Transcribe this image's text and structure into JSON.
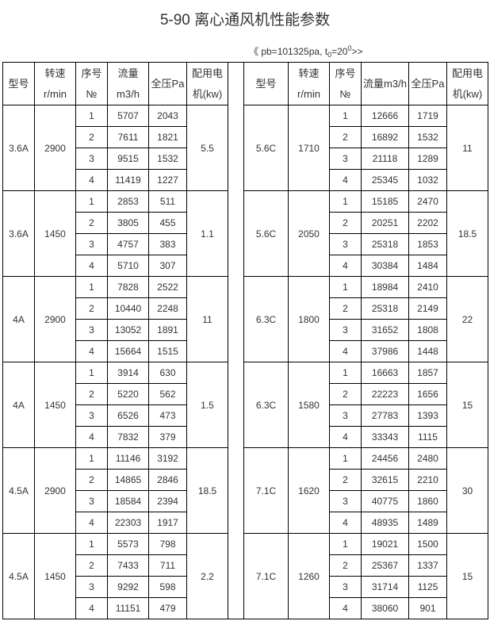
{
  "title": "5-90 离心通风机性能参数",
  "conditions": {
    "prefix": "《 pb=101325pa, t",
    "sub": "0",
    "mid": "=20",
    "sup": "0",
    "suffix": ">>"
  },
  "headers": {
    "left": [
      "型号",
      "转速r/min",
      "序号№",
      "流量m3/h",
      "全压Pa",
      "配用电机(kw)"
    ],
    "right": [
      "型号",
      "转速r/min",
      "序号№",
      "流量m3/h",
      "全压Pa",
      "配用电机(kw)"
    ]
  },
  "left_groups": [
    {
      "model": "3.6A",
      "speed": "2900",
      "motor": "5.5",
      "rows": [
        [
          "1",
          "5707",
          "2043"
        ],
        [
          "2",
          "7611",
          "1821"
        ],
        [
          "3",
          "9515",
          "1532"
        ],
        [
          "4",
          "11419",
          "1227"
        ]
      ]
    },
    {
      "model": "3.6A",
      "speed": "1450",
      "motor": "1.1",
      "rows": [
        [
          "1",
          "2853",
          "511"
        ],
        [
          "2",
          "3805",
          "455"
        ],
        [
          "3",
          "4757",
          "383"
        ],
        [
          "4",
          "5710",
          "307"
        ]
      ]
    },
    {
      "model": "4A",
      "speed": "2900",
      "motor": "11",
      "rows": [
        [
          "1",
          "7828",
          "2522"
        ],
        [
          "2",
          "10440",
          "2248"
        ],
        [
          "3",
          "13052",
          "1891"
        ],
        [
          "4",
          "15664",
          "1515"
        ]
      ]
    },
    {
      "model": "4A",
      "speed": "1450",
      "motor": "1.5",
      "rows": [
        [
          "1",
          "3914",
          "630"
        ],
        [
          "2",
          "5220",
          "562"
        ],
        [
          "3",
          "6526",
          "473"
        ],
        [
          "4",
          "7832",
          "379"
        ]
      ]
    },
    {
      "model": "4.5A",
      "speed": "2900",
      "motor": "18.5",
      "rows": [
        [
          "1",
          "11146",
          "3192"
        ],
        [
          "2",
          "14865",
          "2846"
        ],
        [
          "3",
          "18584",
          "2394"
        ],
        [
          "4",
          "22303",
          "1917"
        ]
      ]
    },
    {
      "model": "4.5A",
      "speed": "1450",
      "motor": "2.2",
      "rows": [
        [
          "1",
          "5573",
          "798"
        ],
        [
          "2",
          "7433",
          "711"
        ],
        [
          "3",
          "9292",
          "598"
        ],
        [
          "4",
          "11151",
          "479"
        ]
      ]
    }
  ],
  "right_groups": [
    {
      "model": "5.6C",
      "speed": "1710",
      "motor": "11",
      "rows": [
        [
          "1",
          "12666",
          "1719"
        ],
        [
          "2",
          "16892",
          "1532"
        ],
        [
          "3",
          "21118",
          "1289"
        ],
        [
          "4",
          "25345",
          "1032"
        ]
      ]
    },
    {
      "model": "5.6C",
      "speed": "2050",
      "motor": "18.5",
      "rows": [
        [
          "1",
          "15185",
          "2470"
        ],
        [
          "2",
          "20251",
          "2202"
        ],
        [
          "3",
          "25318",
          "1853"
        ],
        [
          "4",
          "30384",
          "1484"
        ]
      ]
    },
    {
      "model": "6.3C",
      "speed": "1800",
      "motor": "22",
      "rows": [
        [
          "1",
          "18984",
          "2410"
        ],
        [
          "2",
          "25318",
          "2149"
        ],
        [
          "3",
          "31652",
          "1808"
        ],
        [
          "4",
          "37986",
          "1448"
        ]
      ]
    },
    {
      "model": "6.3C",
      "speed": "1580",
      "motor": "15",
      "rows": [
        [
          "1",
          "16663",
          "1857"
        ],
        [
          "2",
          "22223",
          "1656"
        ],
        [
          "3",
          "27783",
          "1393"
        ],
        [
          "4",
          "33343",
          "1115"
        ]
      ]
    },
    {
      "model": "7.1C",
      "speed": "1620",
      "motor": "30",
      "rows": [
        [
          "1",
          "24456",
          "2480"
        ],
        [
          "2",
          "32615",
          "2210"
        ],
        [
          "3",
          "40775",
          "1860"
        ],
        [
          "4",
          "48935",
          "1489"
        ]
      ]
    },
    {
      "model": "7.1C",
      "speed": "1260",
      "motor": "15",
      "rows": [
        [
          "1",
          "19021",
          "1500"
        ],
        [
          "2",
          "25367",
          "1337"
        ],
        [
          "3",
          "31714",
          "1125"
        ],
        [
          "4",
          "38060",
          "901"
        ]
      ]
    }
  ]
}
